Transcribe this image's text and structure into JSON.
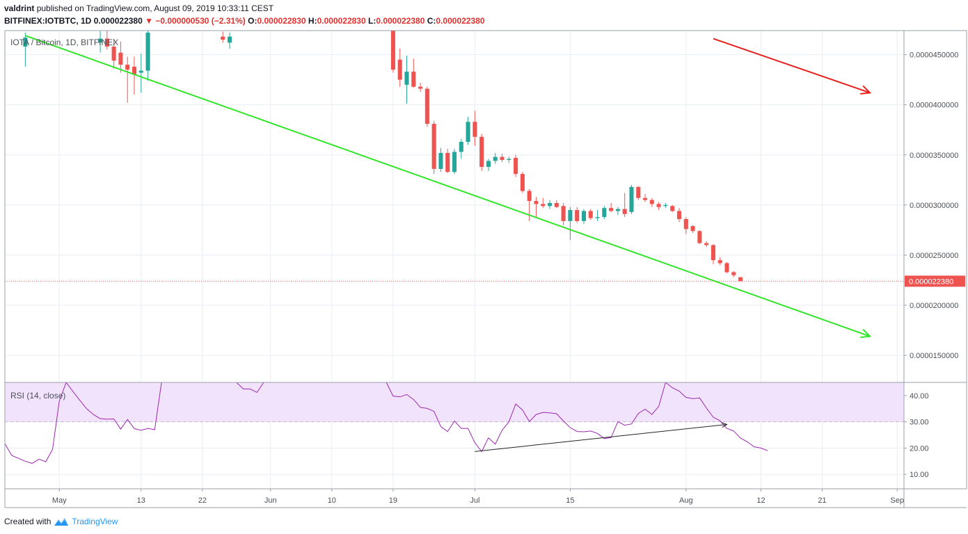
{
  "header": {
    "author": "valdrint",
    "published": "published on TradingView.com, August 09, 2019 10:33:11 CEST",
    "symbol": "BITFINEX:IOTBTC, 1D",
    "last": "0.000022380",
    "change": "−0.000000530 (−2.31%)",
    "o_label": "O:",
    "o_value": "0.000022830",
    "h_label": "H:",
    "h_value": "0.000022830",
    "l_label": "L:",
    "l_value": "0.000022380",
    "c_label": "C:",
    "c_value": "0.000022380"
  },
  "footer": {
    "created_with": "Created with",
    "brand": "TradingView"
  },
  "colors": {
    "up": "#26a69a",
    "down": "#ef5350",
    "trend": "#33e52a",
    "arrow": "#e8201c",
    "rsi": "#9c27b0",
    "rsi_band": "#f1e3fb",
    "price_line": "#ef5350"
  },
  "chart_data": {
    "type": "candlestick",
    "title": "IOTA / Bitcoin, 1D, BITFINEX",
    "last_price_label": "0.000022380",
    "price_axis": {
      "ticks": [
        4.5e-05,
        4e-05,
        3.5e-05,
        3e-05,
        2.5e-05,
        2e-05,
        1.5e-05
      ],
      "tick_labels": [
        "0.0000450000",
        "0.0000400000",
        "0.0000350000",
        "0.0000300000",
        "0.0000250000",
        "0.0000200000",
        "0.0000150000"
      ],
      "range": [
        1.23e-05,
        4.74e-05
      ]
    },
    "time_axis": {
      "labels": [
        {
          "date": "2019-05-01",
          "label": "May"
        },
        {
          "date": "2019-05-13",
          "label": "13"
        },
        {
          "date": "2019-05-22",
          "label": "22"
        },
        {
          "date": "2019-06-01",
          "label": "Jun"
        },
        {
          "date": "2019-06-10",
          "label": "10"
        },
        {
          "date": "2019-06-19",
          "label": "19"
        },
        {
          "date": "2019-07-01",
          "label": "Jul"
        },
        {
          "date": "2019-07-15",
          "label": "15"
        },
        {
          "date": "2019-08-01",
          "label": "Aug"
        },
        {
          "date": "2019-08-12",
          "label": "12"
        },
        {
          "date": "2019-08-21",
          "label": "21"
        },
        {
          "date": "2019-09-01",
          "label": "Sep"
        }
      ],
      "range": [
        "2019-04-23",
        "2019-09-02"
      ]
    },
    "candles": [
      {
        "date": "2019-04-26",
        "open": 4.58e-05,
        "high": 4.72e-05,
        "low": 4.38e-05,
        "close": 4.67e-05
      },
      {
        "date": "2019-05-07",
        "open": 4.62e-05,
        "high": 4.74e-05,
        "low": 4.52e-05,
        "close": 4.66e-05
      },
      {
        "date": "2019-05-08",
        "open": 4.66e-05,
        "high": 4.74e-05,
        "low": 4.55e-05,
        "close": 4.58e-05
      },
      {
        "date": "2019-05-09",
        "open": 4.58e-05,
        "high": 4.66e-05,
        "low": 4.36e-05,
        "close": 4.44e-05
      },
      {
        "date": "2019-05-10",
        "open": 4.52e-05,
        "high": 4.63e-05,
        "low": 4.32e-05,
        "close": 4.4e-05
      },
      {
        "date": "2019-05-11",
        "open": 4.4e-05,
        "high": 4.48e-05,
        "low": 4.02e-05,
        "close": 4.35e-05
      },
      {
        "date": "2019-05-12",
        "open": 4.38e-05,
        "high": 4.48e-05,
        "low": 4.1e-05,
        "close": 4.3e-05
      },
      {
        "date": "2019-05-13",
        "open": 4.32e-05,
        "high": 4.51e-05,
        "low": 4.12e-05,
        "close": 4.34e-05
      },
      {
        "date": "2019-05-14",
        "open": 4.34e-05,
        "high": 4.74e-05,
        "low": 4.24e-05,
        "close": 4.72e-05
      },
      {
        "date": "2019-05-25",
        "open": 4.68e-05,
        "high": 4.73e-05,
        "low": 4.62e-05,
        "close": 4.65e-05
      },
      {
        "date": "2019-05-26",
        "open": 4.62e-05,
        "high": 4.72e-05,
        "low": 4.56e-05,
        "close": 4.68e-05
      },
      {
        "date": "2019-06-19",
        "open": 4.74e-05,
        "high": 4.74e-05,
        "low": 4.32e-05,
        "close": 4.35e-05
      },
      {
        "date": "2019-06-20",
        "open": 4.45e-05,
        "high": 4.56e-05,
        "low": 4.18e-05,
        "close": 4.25e-05
      },
      {
        "date": "2019-06-21",
        "open": 4.2e-05,
        "high": 4.49e-05,
        "low": 4.01e-05,
        "close": 4.33e-05
      },
      {
        "date": "2019-06-22",
        "open": 4.33e-05,
        "high": 4.46e-05,
        "low": 4.17e-05,
        "close": 4.18e-05
      },
      {
        "date": "2019-06-23",
        "open": 4.18e-05,
        "high": 4.22e-05,
        "low": 4.13e-05,
        "close": 4.16e-05
      },
      {
        "date": "2019-06-24",
        "open": 4.16e-05,
        "high": 4.18e-05,
        "low": 3.78e-05,
        "close": 3.81e-05
      },
      {
        "date": "2019-06-25",
        "open": 3.81e-05,
        "high": 3.84e-05,
        "low": 3.31e-05,
        "close": 3.36e-05
      },
      {
        "date": "2019-06-26",
        "open": 3.36e-05,
        "high": 3.57e-05,
        "low": 3.33e-05,
        "close": 3.52e-05
      },
      {
        "date": "2019-06-27",
        "open": 3.52e-05,
        "high": 3.56e-05,
        "low": 3.32e-05,
        "close": 3.33e-05
      },
      {
        "date": "2019-06-28",
        "open": 3.33e-05,
        "high": 3.56e-05,
        "low": 3.31e-05,
        "close": 3.53e-05
      },
      {
        "date": "2019-06-29",
        "open": 3.53e-05,
        "high": 3.66e-05,
        "low": 3.46e-05,
        "close": 3.63e-05
      },
      {
        "date": "2019-06-30",
        "open": 3.63e-05,
        "high": 3.88e-05,
        "low": 3.6e-05,
        "close": 3.83e-05
      },
      {
        "date": "2019-07-01",
        "open": 3.83e-05,
        "high": 3.94e-05,
        "low": 3.59e-05,
        "close": 3.68e-05
      },
      {
        "date": "2019-07-02",
        "open": 3.68e-05,
        "high": 3.71e-05,
        "low": 3.34e-05,
        "close": 3.38e-05
      },
      {
        "date": "2019-07-03",
        "open": 3.38e-05,
        "high": 3.46e-05,
        "low": 3.34e-05,
        "close": 3.44e-05
      },
      {
        "date": "2019-07-04",
        "open": 3.44e-05,
        "high": 3.52e-05,
        "low": 3.41e-05,
        "close": 3.48e-05
      },
      {
        "date": "2019-07-05",
        "open": 3.48e-05,
        "high": 3.51e-05,
        "low": 3.43e-05,
        "close": 3.45e-05
      },
      {
        "date": "2019-07-06",
        "open": 3.45e-05,
        "high": 3.48e-05,
        "low": 3.42e-05,
        "close": 3.46e-05
      },
      {
        "date": "2019-07-07",
        "open": 3.47e-05,
        "high": 3.5e-05,
        "low": 3.28e-05,
        "close": 3.31e-05
      },
      {
        "date": "2019-07-08",
        "open": 3.31e-05,
        "high": 3.33e-05,
        "low": 3.12e-05,
        "close": 3.14e-05
      },
      {
        "date": "2019-07-09",
        "open": 3.14e-05,
        "high": 3.16e-05,
        "low": 2.84e-05,
        "close": 3.04e-05
      },
      {
        "date": "2019-07-10",
        "open": 3.04e-05,
        "high": 3.08e-05,
        "low": 2.88e-05,
        "close": 3.01e-05
      },
      {
        "date": "2019-07-11",
        "open": 3.01e-05,
        "high": 3.07e-05,
        "low": 2.97e-05,
        "close": 2.99e-05
      },
      {
        "date": "2019-07-12",
        "open": 2.99e-05,
        "high": 3.05e-05,
        "low": 2.96e-05,
        "close": 3.02e-05
      },
      {
        "date": "2019-07-13",
        "open": 3.02e-05,
        "high": 3.05e-05,
        "low": 2.97e-05,
        "close": 2.98e-05
      },
      {
        "date": "2019-07-14",
        "open": 2.99e-05,
        "high": 3.02e-05,
        "low": 2.8e-05,
        "close": 2.84e-05
      },
      {
        "date": "2019-07-15",
        "open": 2.84e-05,
        "high": 2.98e-05,
        "low": 2.65e-05,
        "close": 2.95e-05
      },
      {
        "date": "2019-07-16",
        "open": 2.95e-05,
        "high": 2.98e-05,
        "low": 2.82e-05,
        "close": 2.84e-05
      },
      {
        "date": "2019-07-17",
        "open": 2.84e-05,
        "high": 2.96e-05,
        "low": 2.81e-05,
        "close": 2.94e-05
      },
      {
        "date": "2019-07-18",
        "open": 2.94e-05,
        "high": 2.96e-05,
        "low": 2.85e-05,
        "close": 2.87e-05
      },
      {
        "date": "2019-07-19",
        "open": 2.87e-05,
        "high": 2.95e-05,
        "low": 2.84e-05,
        "close": 2.88e-05
      },
      {
        "date": "2019-07-20",
        "open": 2.88e-05,
        "high": 2.99e-05,
        "low": 2.86e-05,
        "close": 2.97e-05
      },
      {
        "date": "2019-07-21",
        "open": 2.97e-05,
        "high": 3.02e-05,
        "low": 2.93e-05,
        "close": 2.94e-05
      },
      {
        "date": "2019-07-22",
        "open": 2.94e-05,
        "high": 2.98e-05,
        "low": 2.9e-05,
        "close": 2.96e-05
      },
      {
        "date": "2019-07-23",
        "open": 2.96e-05,
        "high": 3.12e-05,
        "low": 2.88e-05,
        "close": 2.91e-05
      },
      {
        "date": "2019-07-24",
        "open": 2.93e-05,
        "high": 3.2e-05,
        "low": 2.91e-05,
        "close": 3.18e-05
      },
      {
        "date": "2019-07-25",
        "open": 3.18e-05,
        "high": 3.19e-05,
        "low": 3.05e-05,
        "close": 3.07e-05
      },
      {
        "date": "2019-07-26",
        "open": 3.07e-05,
        "high": 3.11e-05,
        "low": 3.03e-05,
        "close": 3.05e-05
      },
      {
        "date": "2019-07-27",
        "open": 3.05e-05,
        "high": 3.07e-05,
        "low": 2.98e-05,
        "close": 3.01e-05
      },
      {
        "date": "2019-07-28",
        "open": 3.01e-05,
        "high": 3.03e-05,
        "low": 2.95e-05,
        "close": 2.98e-05
      },
      {
        "date": "2019-07-29",
        "open": 2.99e-05,
        "high": 3.02e-05,
        "low": 2.97e-05,
        "close": 3e-05
      },
      {
        "date": "2019-07-30",
        "open": 2.99e-05,
        "high": 3e-05,
        "low": 2.93e-05,
        "close": 2.94e-05
      },
      {
        "date": "2019-07-31",
        "open": 2.94e-05,
        "high": 2.97e-05,
        "low": 2.83e-05,
        "close": 2.86e-05
      },
      {
        "date": "2019-08-01",
        "open": 2.86e-05,
        "high": 2.88e-05,
        "low": 2.71e-05,
        "close": 2.76e-05
      },
      {
        "date": "2019-08-02",
        "open": 2.79e-05,
        "high": 2.8e-05,
        "low": 2.72e-05,
        "close": 2.74e-05
      },
      {
        "date": "2019-08-03",
        "open": 2.74e-05,
        "high": 2.75e-05,
        "low": 2.61e-05,
        "close": 2.62e-05
      },
      {
        "date": "2019-08-04",
        "open": 2.62e-05,
        "high": 2.64e-05,
        "low": 2.58e-05,
        "close": 2.6e-05
      },
      {
        "date": "2019-08-05",
        "open": 2.6e-05,
        "high": 2.61e-05,
        "low": 2.41e-05,
        "close": 2.45e-05
      },
      {
        "date": "2019-08-06",
        "open": 2.45e-05,
        "high": 2.48e-05,
        "low": 2.4e-05,
        "close": 2.42e-05
      },
      {
        "date": "2019-08-07",
        "open": 2.42e-05,
        "high": 2.43e-05,
        "low": 2.32e-05,
        "close": 2.33e-05
      },
      {
        "date": "2019-08-08",
        "open": 2.33e-05,
        "high": 2.34e-05,
        "low": 2.28e-05,
        "close": 2.3e-05
      },
      {
        "date": "2019-08-09",
        "open": 2.28e-05,
        "high": 2.28e-05,
        "low": 2.24e-05,
        "close": 2.24e-05
      }
    ],
    "trendline": {
      "from": {
        "date": "2019-04-26",
        "value": 4.69e-05
      },
      "to": {
        "date": "2019-08-28",
        "value": 1.69e-05
      }
    },
    "red_arrow": {
      "from": {
        "date": "2019-08-05",
        "value": 4.66e-05
      },
      "to": {
        "date": "2019-08-28",
        "value": 4.12e-05
      }
    },
    "rsi": {
      "label": "RSI (14, close)",
      "ticks": [
        40,
        30,
        20,
        10
      ],
      "tick_labels": [
        "40.00",
        "30.00",
        "20.00",
        "10.00"
      ],
      "range": [
        4.5,
        45
      ],
      "band": [
        30,
        45
      ],
      "values": [
        {
          "date": "2019-04-23",
          "value": 21.7
        },
        {
          "date": "2019-04-24",
          "value": 17.2
        },
        {
          "date": "2019-04-25",
          "value": 16.1
        },
        {
          "date": "2019-04-26",
          "value": 15.0
        },
        {
          "date": "2019-04-27",
          "value": 14.2
        },
        {
          "date": "2019-04-28",
          "value": 15.8
        },
        {
          "date": "2019-04-29",
          "value": 14.8
        },
        {
          "date": "2019-04-30",
          "value": 19.5
        },
        {
          "date": "2019-05-01",
          "value": 38.0
        },
        {
          "date": "2019-05-02",
          "value": 45.0
        },
        {
          "date": "2019-05-03",
          "value": 41.5
        },
        {
          "date": "2019-05-04",
          "value": 38.2
        },
        {
          "date": "2019-05-05",
          "value": 35.0
        },
        {
          "date": "2019-05-06",
          "value": 32.8
        },
        {
          "date": "2019-05-07",
          "value": 31.2
        },
        {
          "date": "2019-05-08",
          "value": 31.0
        },
        {
          "date": "2019-05-09",
          "value": 31.1
        },
        {
          "date": "2019-05-10",
          "value": 27.2
        },
        {
          "date": "2019-05-11",
          "value": 30.9
        },
        {
          "date": "2019-05-12",
          "value": 27.4
        },
        {
          "date": "2019-05-13",
          "value": 26.8
        },
        {
          "date": "2019-05-14",
          "value": 27.5
        },
        {
          "date": "2019-05-15",
          "value": 27.0
        },
        {
          "date": "2019-05-16",
          "value": 45.0
        },
        {
          "date": "2019-05-27",
          "value": 45.0
        },
        {
          "date": "2019-05-28",
          "value": 42.5
        },
        {
          "date": "2019-05-29",
          "value": 42.5
        },
        {
          "date": "2019-05-30",
          "value": 41.2
        },
        {
          "date": "2019-05-31",
          "value": 45.0
        },
        {
          "date": "2019-06-18",
          "value": 45.0
        },
        {
          "date": "2019-06-19",
          "value": 39.8
        },
        {
          "date": "2019-06-20",
          "value": 39.5
        },
        {
          "date": "2019-06-21",
          "value": 40.4
        },
        {
          "date": "2019-06-22",
          "value": 38.5
        },
        {
          "date": "2019-06-23",
          "value": 35.5
        },
        {
          "date": "2019-06-24",
          "value": 35.1
        },
        {
          "date": "2019-06-25",
          "value": 34.0
        },
        {
          "date": "2019-06-26",
          "value": 28.2
        },
        {
          "date": "2019-06-27",
          "value": 26.3
        },
        {
          "date": "2019-06-28",
          "value": 30.3
        },
        {
          "date": "2019-06-29",
          "value": 27.5
        },
        {
          "date": "2019-06-30",
          "value": 27.5
        },
        {
          "date": "2019-07-01",
          "value": 22.0
        },
        {
          "date": "2019-07-02",
          "value": 18.7
        },
        {
          "date": "2019-07-03",
          "value": 23.9
        },
        {
          "date": "2019-07-04",
          "value": 21.5
        },
        {
          "date": "2019-07-05",
          "value": 26.8
        },
        {
          "date": "2019-07-06",
          "value": 30.0
        },
        {
          "date": "2019-07-07",
          "value": 36.8
        },
        {
          "date": "2019-07-08",
          "value": 34.5
        },
        {
          "date": "2019-07-09",
          "value": 30.1
        },
        {
          "date": "2019-07-10",
          "value": 32.8
        },
        {
          "date": "2019-07-11",
          "value": 33.6
        },
        {
          "date": "2019-07-12",
          "value": 33.4
        },
        {
          "date": "2019-07-13",
          "value": 33.1
        },
        {
          "date": "2019-07-14",
          "value": 30.3
        },
        {
          "date": "2019-07-15",
          "value": 27.8
        },
        {
          "date": "2019-07-16",
          "value": 26.3
        },
        {
          "date": "2019-07-17",
          "value": 26.2
        },
        {
          "date": "2019-07-18",
          "value": 26.5
        },
        {
          "date": "2019-07-19",
          "value": 25.6
        },
        {
          "date": "2019-07-20",
          "value": 23.6
        },
        {
          "date": "2019-07-21",
          "value": 24.0
        },
        {
          "date": "2019-07-22",
          "value": 30.1
        },
        {
          "date": "2019-07-23",
          "value": 28.7
        },
        {
          "date": "2019-07-24",
          "value": 29.2
        },
        {
          "date": "2019-07-25",
          "value": 33.2
        },
        {
          "date": "2019-07-26",
          "value": 34.8
        },
        {
          "date": "2019-07-27",
          "value": 32.8
        },
        {
          "date": "2019-07-28",
          "value": 35.9
        },
        {
          "date": "2019-07-29",
          "value": 45.0
        },
        {
          "date": "2019-07-30",
          "value": 43.0
        },
        {
          "date": "2019-07-31",
          "value": 41.7
        },
        {
          "date": "2019-08-01",
          "value": 39.3
        },
        {
          "date": "2019-08-02",
          "value": 38.8
        },
        {
          "date": "2019-08-03",
          "value": 39.1
        },
        {
          "date": "2019-08-04",
          "value": 35.2
        },
        {
          "date": "2019-08-05",
          "value": 31.8
        },
        {
          "date": "2019-08-06",
          "value": 30.4
        },
        {
          "date": "2019-08-07",
          "value": 27.5
        },
        {
          "date": "2019-08-08",
          "value": 26.5
        },
        {
          "date": "2019-08-09",
          "value": 23.8
        },
        {
          "date": "2019-08-10",
          "value": 22.4
        },
        {
          "date": "2019-08-11",
          "value": 20.5
        },
        {
          "date": "2019-08-12",
          "value": 20.0
        },
        {
          "date": "2019-08-13",
          "value": 19.0
        }
      ],
      "divergence_line": {
        "from": {
          "date": "2019-07-01",
          "value": 18.7
        },
        "to": {
          "date": "2019-08-07",
          "value": 29.0
        }
      }
    }
  }
}
